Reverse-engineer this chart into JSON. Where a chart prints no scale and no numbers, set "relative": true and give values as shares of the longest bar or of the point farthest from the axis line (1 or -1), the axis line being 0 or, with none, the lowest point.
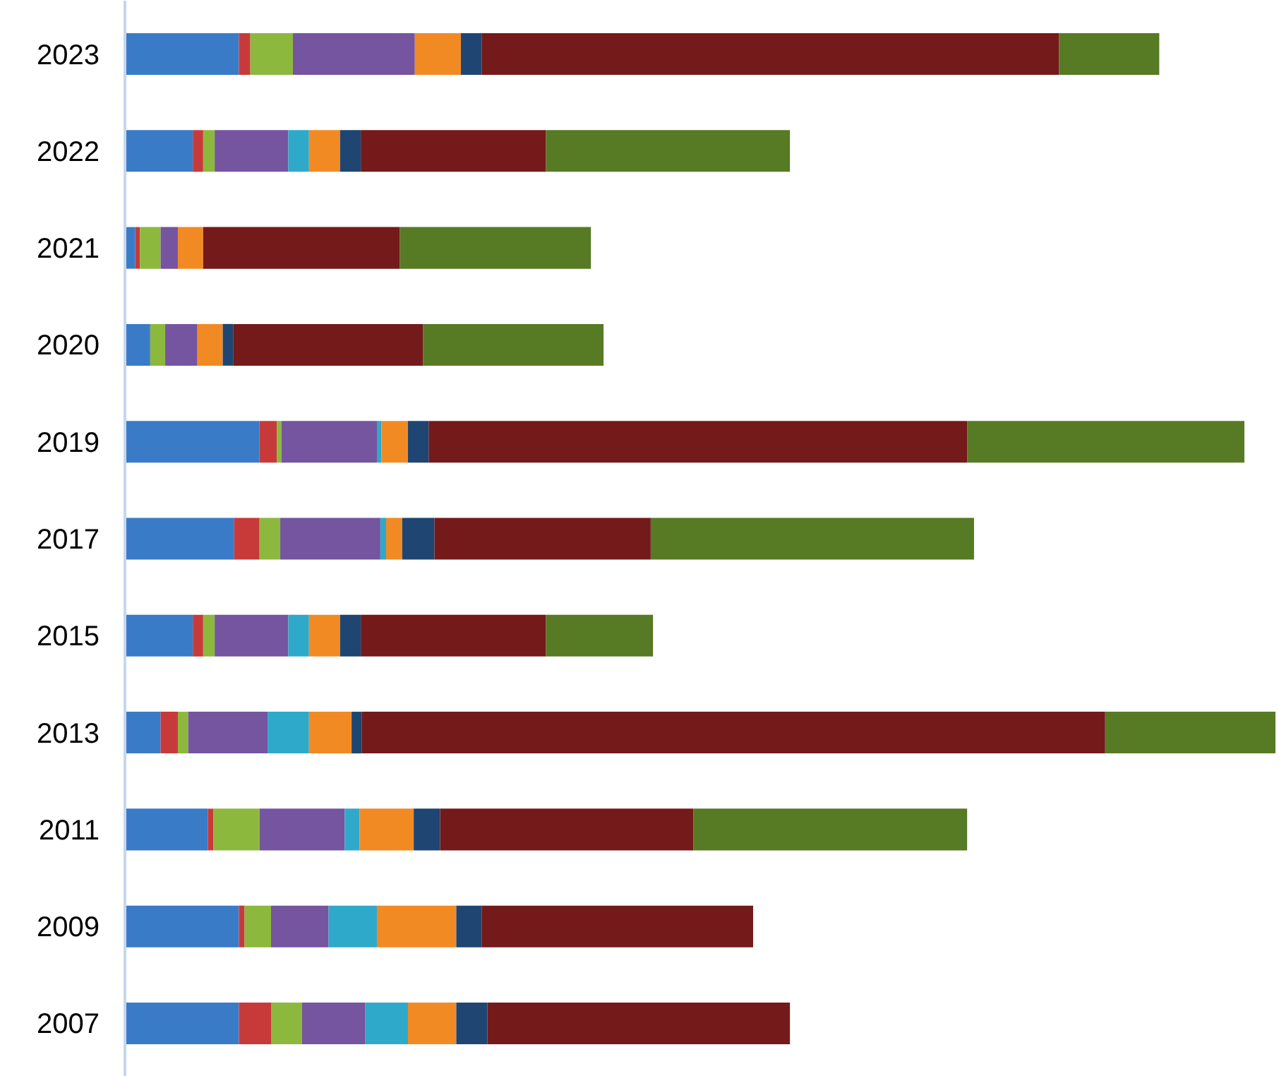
{
  "chart_data": {
    "type": "bar",
    "orientation": "horizontal",
    "stacked": true,
    "relative": true,
    "tick_labels": "y",
    "categories": [
      "2023",
      "2022",
      "2021",
      "2020",
      "2019",
      "2017",
      "2015",
      "2013",
      "2011",
      "2009",
      "2007"
    ],
    "series": [
      {
        "color": "#3a7bc8",
        "values": [
          0.099,
          0.059,
          0.009,
          0.022,
          0.117,
          0.095,
          0.059,
          0.031,
          0.072,
          0.099,
          0.099
        ]
      },
      {
        "color": "#c83a3a",
        "values": [
          0.01,
          0.009,
          0.004,
          0,
          0.015,
          0.022,
          0.009,
          0.015,
          0.005,
          0.005,
          0.028
        ]
      },
      {
        "color": "#8db83e",
        "values": [
          0.037,
          0.01,
          0.018,
          0.013,
          0.004,
          0.018,
          0.01,
          0.009,
          0.04,
          0.023,
          0.027
        ]
      },
      {
        "color": "#7554a0",
        "values": [
          0.106,
          0.064,
          0.015,
          0.028,
          0.083,
          0.087,
          0.064,
          0.069,
          0.074,
          0.05,
          0.055
        ]
      },
      {
        "color": "#2fa9c9",
        "values": [
          0,
          0.018,
          0,
          0,
          0.004,
          0.005,
          0.018,
          0.036,
          0.013,
          0.042,
          0.037
        ]
      },
      {
        "color": "#f28a24",
        "values": [
          0.04,
          0.027,
          0.022,
          0.022,
          0.023,
          0.014,
          0.027,
          0.037,
          0.047,
          0.069,
          0.042
        ]
      },
      {
        "color": "#1f4572",
        "values": [
          0.018,
          0.018,
          0,
          0.009,
          0.018,
          0.028,
          0.018,
          0.009,
          0.023,
          0.022,
          0.027
        ]
      },
      {
        "color": "#741a1a",
        "values": [
          0.502,
          0.161,
          0.171,
          0.165,
          0.468,
          0.188,
          0.161,
          0.646,
          0.22,
          0.236,
          0.263
        ]
      },
      {
        "color": "#577a24",
        "values": [
          0.087,
          0.212,
          0.166,
          0.157,
          0.241,
          0.281,
          0.093,
          0.148,
          0.238,
          0,
          0
        ]
      }
    ]
  }
}
